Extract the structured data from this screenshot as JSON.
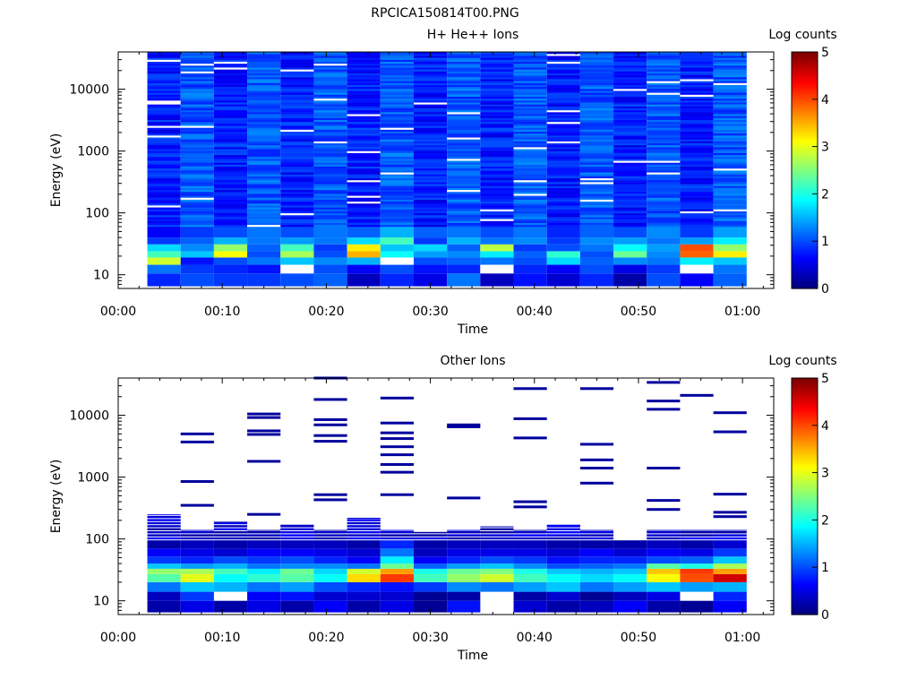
{
  "figure_title": "RPCICA150814T00.PNG",
  "chart_data": [
    {
      "type": "heatmap",
      "title": "H+ He++ Ions",
      "xlabel": "Time",
      "ylabel": "Energy (eV)",
      "yscale": "log",
      "ylim": [
        6,
        40000
      ],
      "xlim_minutes": [
        0,
        63
      ],
      "x_ticks": [
        "00:00",
        "00:10",
        "00:20",
        "00:30",
        "00:40",
        "00:50",
        "01:00"
      ],
      "y_ticks": [
        "10",
        "100",
        "1000",
        "10000"
      ],
      "colorbar": {
        "label": "Log counts",
        "range": [
          0,
          5
        ],
        "ticks": [
          "0",
          "1",
          "2",
          "3",
          "4",
          "5"
        ]
      },
      "time_bins_minutes": [
        2.8,
        6.0,
        9.2,
        12.4,
        15.6,
        18.8,
        22.0,
        25.2,
        28.4,
        31.6,
        34.8,
        38.0,
        41.2,
        44.4,
        47.6,
        50.8,
        54.0,
        57.2,
        60.4
      ],
      "columns_low_energy": [
        [
          0.8,
          1.2,
          2.9,
          2.2,
          1.7,
          0.9,
          0.6
        ],
        [
          1.0,
          0.9,
          0.7,
          1.6,
          1.3,
          1.1,
          0.9
        ],
        [
          0.9,
          0.8,
          1.0,
          3.1,
          2.6,
          1.5,
          1.0
        ],
        [
          0.9,
          0.7,
          1.2,
          1.0,
          1.1,
          1.2,
          1.2
        ],
        [
          1.0,
          0.0,
          1.6,
          2.7,
          2.2,
          1.4,
          1.0
        ],
        [
          1.1,
          1.0,
          1.3,
          1.0,
          0.9,
          1.2,
          1.2
        ],
        [
          0.3,
          0.6,
          1.5,
          3.5,
          3.2,
          1.7,
          1.1
        ],
        [
          0.8,
          1.0,
          0.0,
          1.9,
          1.6,
          2.2,
          1.5
        ],
        [
          0.5,
          0.7,
          1.0,
          1.4,
          1.7,
          0.9,
          1.1
        ],
        [
          1.2,
          0.8,
          1.1,
          1.3,
          1.1,
          1.5,
          1.2
        ],
        [
          0.3,
          0.0,
          1.2,
          1.8,
          2.8,
          1.2,
          1.0
        ],
        [
          0.7,
          0.8,
          1.0,
          1.1,
          0.9,
          1.3,
          1.2
        ],
        [
          0.4,
          0.6,
          1.7,
          2.1,
          1.0,
          0.9,
          0.8
        ],
        [
          0.8,
          1.0,
          1.1,
          1.0,
          1.2,
          1.3,
          1.1
        ],
        [
          0.2,
          0.5,
          1.3,
          2.4,
          1.9,
          1.4,
          1.0
        ],
        [
          1.0,
          0.9,
          1.2,
          1.3,
          1.4,
          1.2,
          1.3
        ],
        [
          0.6,
          0.0,
          1.8,
          3.9,
          4.0,
          1.4,
          0.9
        ],
        [
          1.1,
          1.2,
          1.6,
          3.2,
          2.6,
          1.8,
          1.4
        ]
      ]
    },
    {
      "type": "heatmap",
      "title": "Other Ions",
      "xlabel": "Time",
      "ylabel": "Energy (eV)",
      "yscale": "log",
      "ylim": [
        6,
        40000
      ],
      "xlim_minutes": [
        0,
        63
      ],
      "x_ticks": [
        "00:00",
        "00:10",
        "00:20",
        "00:30",
        "00:40",
        "00:50",
        "01:00"
      ],
      "y_ticks": [
        "10",
        "100",
        "1000",
        "10000"
      ],
      "colorbar": {
        "label": "Log counts",
        "range": [
          0,
          5
        ],
        "ticks": [
          "0",
          "1",
          "2",
          "3",
          "4",
          "5"
        ]
      },
      "columns_low_energy": [
        [
          0.2,
          0.3,
          1.2,
          2.3,
          2.6,
          1.6,
          0.9,
          0.6,
          0.2
        ],
        [
          0.5,
          0.9,
          1.6,
          3.0,
          2.7,
          1.4,
          0.8,
          0.5,
          0.3
        ],
        [
          0.2,
          null,
          1.5,
          1.9,
          2.2,
          1.5,
          1.0,
          0.4,
          0.2
        ],
        [
          0.5,
          0.6,
          1.2,
          2.1,
          1.8,
          1.2,
          0.9,
          0.6,
          0.3
        ],
        [
          0.2,
          0.7,
          1.4,
          2.3,
          2.4,
          1.3,
          1.0,
          0.6,
          0.3
        ],
        [
          0.6,
          0.4,
          1.0,
          1.9,
          1.7,
          1.3,
          0.8,
          0.5,
          0.3
        ],
        [
          0.2,
          0.4,
          0.8,
          3.3,
          2.9,
          1.2,
          0.6,
          0.4,
          0.2
        ],
        [
          0.5,
          0.4,
          0.7,
          4.1,
          3.6,
          2.4,
          1.8,
          1.2,
          0.8
        ],
        [
          0.1,
          0.1,
          0.9,
          2.2,
          2.0,
          1.1,
          0.6,
          0.3,
          0.2
        ],
        [
          0.7,
          0.2,
          1.3,
          2.6,
          2.4,
          1.4,
          0.8,
          0.5,
          0.3
        ],
        [
          null,
          null,
          1.2,
          2.9,
          2.5,
          1.6,
          1.0,
          0.5,
          0.3
        ],
        [
          0.4,
          0.2,
          1.4,
          2.2,
          2.0,
          1.3,
          0.9,
          0.5,
          0.3
        ],
        [
          0.2,
          0.4,
          1.6,
          1.9,
          1.6,
          1.0,
          0.7,
          0.4,
          0.2
        ],
        [
          0.3,
          0.1,
          1.2,
          1.7,
          1.5,
          1.1,
          0.8,
          0.6,
          0.2
        ],
        [
          0.6,
          0.3,
          1.4,
          1.9,
          1.6,
          1.2,
          0.8,
          0.4,
          0.2
        ],
        [
          0.2,
          0.5,
          1.6,
          3.1,
          3.4,
          2.3,
          1.0,
          0.6,
          0.3
        ],
        [
          0.1,
          null,
          1.4,
          4.0,
          4.1,
          2.0,
          1.1,
          0.5,
          0.2
        ],
        [
          0.6,
          0.8,
          1.5,
          4.6,
          3.6,
          2.7,
          1.6,
          0.9,
          0.4
        ]
      ],
      "sparse_high_energy_eV": [
        [
          250
        ],
        [
          5000,
          3700,
          850,
          350
        ],
        [
          190
        ],
        [
          10500,
          9200,
          5600,
          4900,
          1800,
          250
        ],
        [
          170
        ],
        [
          40000,
          18000,
          8500,
          7000,
          4700,
          3800,
          520,
          430
        ],
        [
          220
        ],
        [
          19000,
          7500,
          5200,
          4200,
          3100,
          2300,
          1600,
          1200,
          520
        ],
        [
          130
        ],
        [
          7000,
          6500,
          460
        ],
        [
          160
        ],
        [
          27000,
          8800,
          4300,
          400,
          330
        ],
        [
          170
        ],
        [
          27000,
          3400,
          1900,
          1400,
          800
        ],
        [
          80
        ],
        [
          34000,
          17000,
          12500,
          1400,
          420,
          300
        ],
        [
          21000
        ],
        [
          11000,
          5400,
          530,
          270,
          230
        ]
      ]
    }
  ]
}
